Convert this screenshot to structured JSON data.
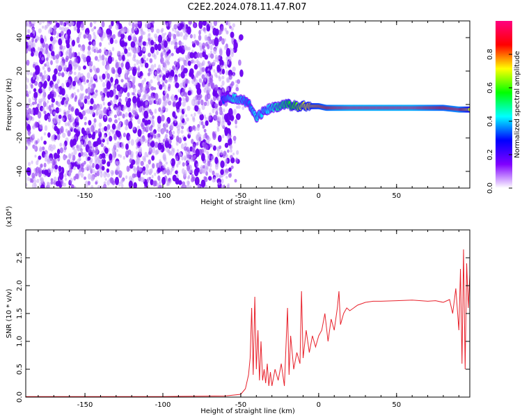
{
  "figure_title": "C2E2.2024.078.11.47.R07",
  "chart_data": [
    {
      "type": "heatmap",
      "title": "C2E2.2024.078.11.47.R07",
      "xlabel": "Height of straight line (km)",
      "ylabel": "Frequency (Hz)",
      "xlim": [
        -188,
        97
      ],
      "ylim": [
        -50,
        50
      ],
      "xticks": [
        -150,
        -100,
        -50,
        0,
        50
      ],
      "yticks": [
        -40,
        -20,
        0,
        20,
        40
      ],
      "colorbar": {
        "label": "Normalized spectral amplitude",
        "range": [
          0.0,
          1.0
        ],
        "ticks": [
          0.0,
          0.2,
          0.4,
          0.6,
          0.8
        ],
        "colormap": [
          "#ffffff",
          "#8000ff",
          "#0000ff",
          "#00ffff",
          "#00ff00",
          "#ffff00",
          "#ff0000",
          "#ff0080"
        ]
      },
      "noise_region_x": [
        -188,
        -60
      ],
      "signal_line": {
        "x": [
          -62,
          -55,
          -50,
          -45,
          -40,
          -35,
          -30,
          -25,
          -20,
          -15,
          -10,
          -5,
          0,
          5,
          10,
          20,
          30,
          40,
          50,
          60,
          70,
          80,
          90,
          97
        ],
        "frequency": [
          3,
          4,
          3,
          1,
          -8,
          -4,
          -2,
          -1,
          0,
          -1,
          -1,
          -1,
          -1,
          -2,
          -2,
          -2,
          -2,
          -2,
          -2,
          -2,
          -2,
          -2,
          -3,
          -3
        ],
        "amplitude": [
          0.3,
          0.45,
          0.4,
          0.35,
          0.45,
          0.4,
          0.45,
          0.5,
          0.55,
          0.6,
          0.7,
          0.75,
          0.8,
          0.85,
          0.9,
          0.95,
          0.95,
          0.95,
          0.95,
          0.95,
          0.9,
          0.85,
          0.9,
          0.7
        ]
      }
    },
    {
      "type": "line",
      "xlabel": "Height of straight line (km)",
      "ylabel": "SNR (10 * v/v)",
      "yscale_label": "(x10⁴)",
      "xlim": [
        -188,
        97
      ],
      "ylim": [
        0,
        3.0
      ],
      "xticks": [
        -150,
        -100,
        -50,
        0,
        50
      ],
      "yticks": [
        0.0,
        0.5,
        1.0,
        1.5,
        2.0,
        2.5
      ],
      "line_color": "#e8202a",
      "series": [
        {
          "x": [
            -188,
            -150,
            -100,
            -60,
            -50,
            -47,
            -45,
            -44,
            -43,
            -42,
            -41,
            -40,
            -39,
            -38,
            -37,
            -36,
            -35,
            -34,
            -33,
            -32,
            -31,
            -30,
            -28,
            -26,
            -24,
            -22,
            -20,
            -19,
            -18,
            -16,
            -14,
            -12,
            -11,
            -10,
            -8,
            -6,
            -4,
            -2,
            0,
            2,
            4,
            6,
            8,
            10,
            12,
            13,
            14,
            16,
            18,
            20,
            25,
            30,
            35,
            40,
            50,
            60,
            70,
            75,
            80,
            84,
            86,
            88,
            90,
            91,
            92,
            93,
            94,
            95,
            96,
            97
          ],
          "y": [
            0.01,
            0.01,
            0.01,
            0.02,
            0.05,
            0.15,
            0.4,
            0.7,
            1.6,
            0.4,
            1.8,
            0.5,
            1.2,
            0.3,
            1.0,
            0.3,
            0.5,
            0.25,
            0.6,
            0.2,
            0.45,
            0.2,
            0.5,
            0.3,
            0.6,
            0.2,
            1.6,
            0.4,
            1.1,
            0.5,
            0.8,
            0.6,
            1.9,
            0.7,
            1.2,
            0.8,
            1.1,
            0.9,
            1.1,
            1.2,
            1.5,
            1.0,
            1.4,
            1.2,
            1.6,
            1.9,
            1.3,
            1.5,
            1.6,
            1.55,
            1.65,
            1.7,
            1.72,
            1.72,
            1.73,
            1.74,
            1.72,
            1.73,
            1.7,
            1.75,
            1.5,
            1.95,
            1.2,
            2.3,
            0.6,
            2.65,
            0.5,
            2.4,
            1.6,
            2.2
          ]
        }
      ]
    }
  ]
}
